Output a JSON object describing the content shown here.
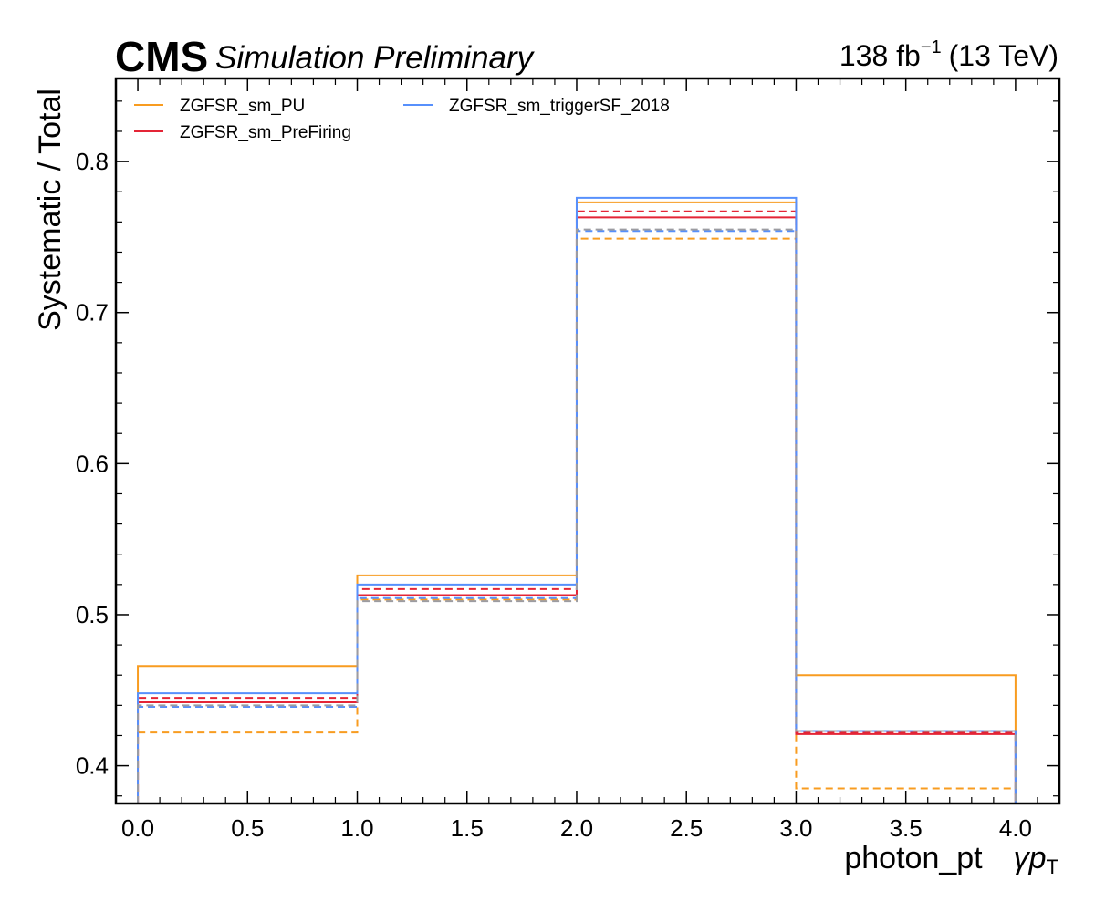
{
  "header": {
    "experiment": "CMS",
    "extra": "Simulation Preliminary",
    "lumi_value": "138 fb",
    "lumi_exp": "−1",
    "energy": "(13 TeV)"
  },
  "chart_data": {
    "type": "line",
    "style": "step-histogram",
    "bin_edges": [
      0,
      1,
      2,
      3,
      4
    ],
    "xlabel": "photon_pt",
    "xlabel_var": "γp",
    "xlabel_sub": "T",
    "ylabel": "Systematic / Total",
    "xlim": [
      -0.1,
      4.2
    ],
    "ylim": [
      0.375,
      0.855
    ],
    "xticks": [
      "0.0",
      "0.5",
      "1.0",
      "1.5",
      "2.0",
      "2.5",
      "3.0",
      "3.5",
      "4.0"
    ],
    "yticks": [
      "0.4",
      "0.5",
      "0.6",
      "0.7",
      "0.8"
    ],
    "legend_position": "top-left",
    "series": [
      {
        "name": "ZGFSR_sm_PU",
        "color": "#f89c20",
        "variant": "up",
        "values": [
          0.466,
          0.526,
          0.773,
          0.46
        ]
      },
      {
        "name": "",
        "color": "#f89c20",
        "variant": "down",
        "values": [
          0.422,
          0.51,
          0.749,
          0.385
        ]
      },
      {
        "name": "ZGFSR_sm_PreFiring",
        "color": "#e42536",
        "variant": "up",
        "values": [
          0.442,
          0.513,
          0.763,
          0.421
        ]
      },
      {
        "name": "",
        "color": "#e42536",
        "variant": "down",
        "values": [
          0.445,
          0.517,
          0.767,
          0.422
        ]
      },
      {
        "name": "ZGFSR_sm_triggerSF_2018",
        "color": "#5790fc",
        "variant": "up",
        "values": [
          0.448,
          0.52,
          0.776,
          0.423
        ]
      },
      {
        "name": "",
        "color": "#5790fc",
        "variant": "down",
        "values": [
          0.439,
          0.511,
          0.754,
          0.423
        ]
      },
      {
        "name": "",
        "color": "#9c9ca1",
        "variant": "down",
        "values": [
          0.44,
          0.509,
          0.755,
          0.423
        ]
      }
    ]
  }
}
